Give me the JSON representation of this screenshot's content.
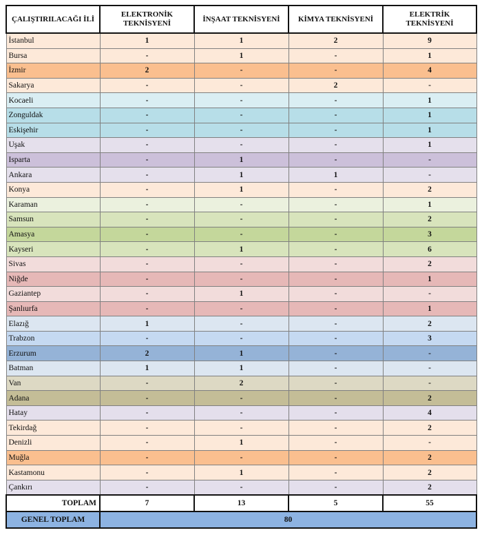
{
  "caption_fragment": "",
  "header": {
    "city": "ÇALIŞTIRILACAĞI İLİ",
    "col1": "ELEKTRONİK TEKNİSYENİ",
    "col2": "İNŞAAT TEKNİSYENİ",
    "col3": "KİMYA TEKNİSYENİ",
    "col4": "ELEKTRİK TEKNİSYENİ"
  },
  "rows": [
    {
      "city": "İstanbul",
      "v": [
        "1",
        "1",
        "2",
        "9"
      ],
      "color": "#fde9d9"
    },
    {
      "city": "Bursa",
      "v": [
        "-",
        "1",
        "-",
        "1"
      ],
      "color": "#fde9d9"
    },
    {
      "city": "İzmir",
      "v": [
        "2",
        "-",
        "-",
        "4"
      ],
      "color": "#fabf8f"
    },
    {
      "city": "Sakarya",
      "v": [
        "-",
        "-",
        "2",
        "-"
      ],
      "color": "#fde9d9"
    },
    {
      "city": "Kocaeli",
      "v": [
        "-",
        "-",
        "-",
        "1"
      ],
      "color": "#daeef3"
    },
    {
      "city": "Zonguldak",
      "v": [
        "-",
        "-",
        "-",
        "1"
      ],
      "color": "#b7dee8"
    },
    {
      "city": "Eskişehir",
      "v": [
        "-",
        "-",
        "-",
        "1"
      ],
      "color": "#b7dee8"
    },
    {
      "city": "Uşak",
      "v": [
        "-",
        "-",
        "-",
        "1"
      ],
      "color": "#e5e0ec"
    },
    {
      "city": "Isparta",
      "v": [
        "-",
        "1",
        "-",
        "-"
      ],
      "color": "#ccc0da"
    },
    {
      "city": "Ankara",
      "v": [
        "-",
        "1",
        "1",
        "-"
      ],
      "color": "#e5e0ec"
    },
    {
      "city": "Konya",
      "v": [
        "-",
        "1",
        "-",
        "2"
      ],
      "color": "#fde9d9"
    },
    {
      "city": "Karaman",
      "v": [
        "-",
        "-",
        "-",
        "1"
      ],
      "color": "#ebf1de"
    },
    {
      "city": "Samsun",
      "v": [
        "-",
        "-",
        "-",
        "2"
      ],
      "color": "#d8e4bc"
    },
    {
      "city": "Amasya",
      "v": [
        "-",
        "-",
        "-",
        "3"
      ],
      "color": "#c4d79b"
    },
    {
      "city": "Kayseri",
      "v": [
        "-",
        "1",
        "-",
        "6"
      ],
      "color": "#d8e4bc"
    },
    {
      "city": "Sivas",
      "v": [
        "-",
        "-",
        "-",
        "2"
      ],
      "color": "#f2dcdb"
    },
    {
      "city": "Niğde",
      "v": [
        "-",
        "-",
        "-",
        "1"
      ],
      "color": "#e6b8b7"
    },
    {
      "city": "Gaziantep",
      "v": [
        "-",
        "1",
        "-",
        "-"
      ],
      "color": "#f2dcdb"
    },
    {
      "city": "Şanlıurfa",
      "v": [
        "-",
        "-",
        "-",
        "1"
      ],
      "color": "#e6b8b7"
    },
    {
      "city": "Elazığ",
      "v": [
        "1",
        "-",
        "-",
        "2"
      ],
      "color": "#dce6f1"
    },
    {
      "city": "Trabzon",
      "v": [
        "-",
        "-",
        "-",
        "3"
      ],
      "color": "#c5d9f1"
    },
    {
      "city": "Erzurum",
      "v": [
        "2",
        "1",
        "-",
        "-"
      ],
      "color": "#95b3d7"
    },
    {
      "city": "Batman",
      "v": [
        "1",
        "1",
        "-",
        "-"
      ],
      "color": "#dce6f1"
    },
    {
      "city": "Van",
      "v": [
        "-",
        "2",
        "-",
        "-"
      ],
      "color": "#ddd9c4"
    },
    {
      "city": "Adana",
      "v": [
        "-",
        "-",
        "-",
        "2"
      ],
      "color": "#c4bd97"
    },
    {
      "city": "Hatay",
      "v": [
        "-",
        "-",
        "-",
        "4"
      ],
      "color": "#e4dfec"
    },
    {
      "city": "Tekirdağ",
      "v": [
        "-",
        "-",
        "-",
        "2"
      ],
      "color": "#fde9d9"
    },
    {
      "city": "Denizli",
      "v": [
        "-",
        "1",
        "-",
        "-"
      ],
      "color": "#fde9d9"
    },
    {
      "city": "Muğla",
      "v": [
        "-",
        "-",
        "-",
        "2"
      ],
      "color": "#fabf8f"
    },
    {
      "city": "Kastamonu",
      "v": [
        "-",
        "1",
        "-",
        "2"
      ],
      "color": "#fde9d9"
    },
    {
      "city": "Çankırı",
      "v": [
        "-",
        "-",
        "-",
        "2"
      ],
      "color": "#e4dfec"
    }
  ],
  "totals": {
    "label": "TOPLAM",
    "values": [
      "7",
      "13",
      "5",
      "55"
    ]
  },
  "grand": {
    "label": "GENEL TOPLAM",
    "value": "80",
    "color": "#8db3e2"
  }
}
